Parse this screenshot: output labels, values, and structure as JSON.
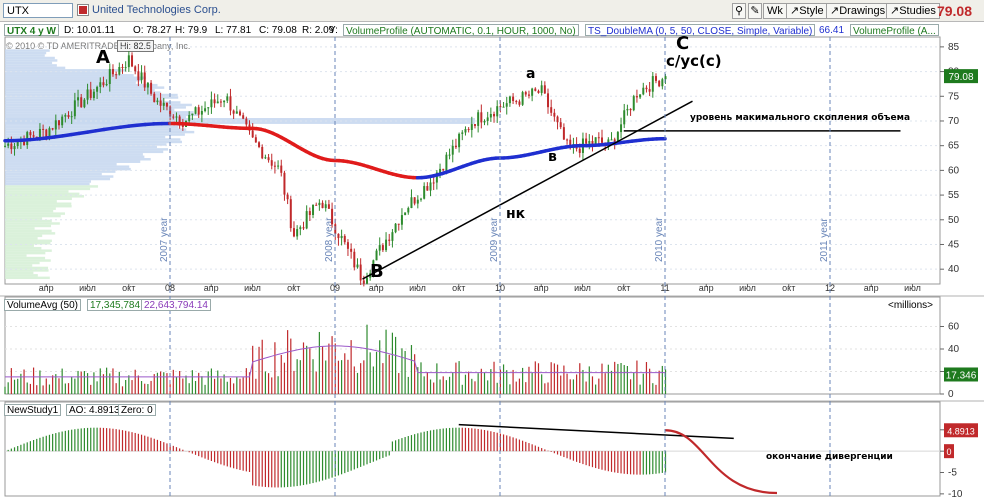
{
  "toolbar": {
    "symbol": "UTX",
    "company": "United Technologies Corp.",
    "wk_label": "Wk",
    "style_label": "Style",
    "drawings_label": "Drawings",
    "studies_label": "Studies",
    "last_price": "79.08"
  },
  "infobar": {
    "label": "UTX 4 y W",
    "date": "D: 10.01.11",
    "open": "O: 78.27",
    "high": "H: 79.9",
    "low": "L: 77.81",
    "close": "C: 79.08",
    "range": "R: 2.09",
    "y": "Y:",
    "study1": "VolumeProfile (AUTOMATIC, 0.1, HOUR, 1000, No)",
    "study2": "TS_DoubleMA (0, 5, 50, CLOSE, Simple, Variable)",
    "study2_value": "66.41",
    "study3": "VolumeProfile (A...",
    "copyright": "© 2010 © TD AMERITRADE IP Company, Inc.",
    "hi_tag": "Hi: 82.5"
  },
  "colors": {
    "up_bar": "#2e8b2e",
    "down_bar": "#c0292b",
    "ma_up": "#1f2fd0",
    "ma_down": "#e01b1b",
    "profile": "#c8d8f0",
    "price_tag_bg": "#1e7a1e",
    "ao_curve": "#c0292b"
  },
  "chart_data": [
    {
      "type": "candlestick",
      "title": "UTX 4 y W",
      "x": [
        "2007-04",
        "2007-07",
        "2007-10",
        "2008-01",
        "2008-04",
        "2008-07",
        "2008-10",
        "2009-01",
        "2009-04",
        "2009-07",
        "2009-10",
        "2010-01",
        "2010-04",
        "2010-07",
        "2010-10",
        "2011-01",
        "2011-04",
        "2011-07",
        "2011-10",
        "2012-01",
        "2012-04",
        "2012-07"
      ],
      "x_tick_labels": [
        "апр",
        "июл",
        "окт",
        "08",
        "апр",
        "июл",
        "окт",
        "09",
        "апр",
        "июл",
        "окт",
        "10",
        "апр",
        "июл",
        "окт",
        "11",
        "апр",
        "июл",
        "окт",
        "12",
        "апр",
        "июл"
      ],
      "year_markers": [
        "2007 year",
        "2008 year",
        "2009 year",
        "2010 year",
        "2011 year"
      ],
      "y_ticks": [
        40,
        45,
        50,
        55,
        60,
        65,
        70,
        75,
        80,
        85
      ],
      "ylim": [
        37,
        87
      ],
      "price_path": [
        [
          "2007-01",
          65
        ],
        [
          "2007-04",
          68
        ],
        [
          "2007-07",
          75
        ],
        [
          "2007-10",
          82.5
        ],
        [
          "2007-12",
          74
        ],
        [
          "2008-02",
          70
        ],
        [
          "2008-05",
          75
        ],
        [
          "2008-07",
          66
        ],
        [
          "2008-09",
          60
        ],
        [
          "2008-10",
          47
        ],
        [
          "2008-12",
          54
        ],
        [
          "2009-03",
          38
        ],
        [
          "2009-06",
          52
        ],
        [
          "2009-08",
          58
        ],
        [
          "2009-11",
          70
        ],
        [
          "2010-01",
          73
        ],
        [
          "2010-04",
          76
        ],
        [
          "2010-06",
          64
        ],
        [
          "2010-08",
          66
        ],
        [
          "2010-09",
          65
        ],
        [
          "2010-11",
          76
        ],
        [
          "2011-01",
          79.08
        ]
      ],
      "series": [
        {
          "name": "TS_DoubleMA",
          "values": [
            [
              "2007-01",
              66
            ],
            [
              "2008-01",
              69.5
            ],
            [
              "2008-07",
              68.5
            ],
            [
              "2009-01",
              62
            ],
            [
              "2009-07",
              58.5
            ],
            [
              "2010-01",
              62.5
            ],
            [
              "2010-07",
              65
            ],
            [
              "2011-01",
              66.41
            ]
          ]
        }
      ],
      "volume_profile_peak": 70,
      "annotations": [
        {
          "text": "A",
          "at": [
            "2007-10",
            82.5
          ]
        },
        {
          "text": "B",
          "at": [
            "2009-03",
            38
          ]
        },
        {
          "text": "C",
          "at": [
            "2011-01",
            79.08
          ]
        },
        {
          "text": "c/yc(c)",
          "at": [
            "2011-01",
            79
          ]
        },
        {
          "text": "a",
          "at": [
            "2010-04",
            76
          ]
        },
        {
          "text": "в",
          "at": [
            "2010-06",
            64
          ]
        },
        {
          "text": "нк",
          "at": [
            "2009-10",
            55
          ]
        },
        {
          "text": "уровень макимального скопления объема",
          "at": [
            "2010-10",
            70
          ]
        }
      ],
      "trendline": [
        [
          "2009-03",
          38
        ],
        [
          "2011-03",
          74
        ]
      ],
      "level_line": [
        [
          "2010-10",
          68
        ],
        [
          "2012-07",
          68
        ]
      ]
    },
    {
      "type": "bar",
      "title": "VolumeAvg (50)",
      "values_label": "17,345,784",
      "avg_label": "22,643,794.14",
      "units": "<millions>",
      "y_ticks": [
        0,
        20,
        40,
        60
      ],
      "ylim": [
        0,
        72
      ],
      "last_tag": "17.346"
    },
    {
      "type": "bar",
      "title": "NewStudy1",
      "ao_label": "AO: 4.8913",
      "zero_label": "Zero: 0",
      "y_ticks": [
        -10,
        -5,
        0,
        5
      ],
      "ylim": [
        -10.5,
        8
      ],
      "last_tag": "4.8913",
      "zero_tag": "0",
      "divergence_line": [
        [
          "2009-10",
          6.2
        ],
        [
          "2011-06",
          3.0
        ]
      ],
      "annotation": "окончание дивергенции"
    }
  ]
}
